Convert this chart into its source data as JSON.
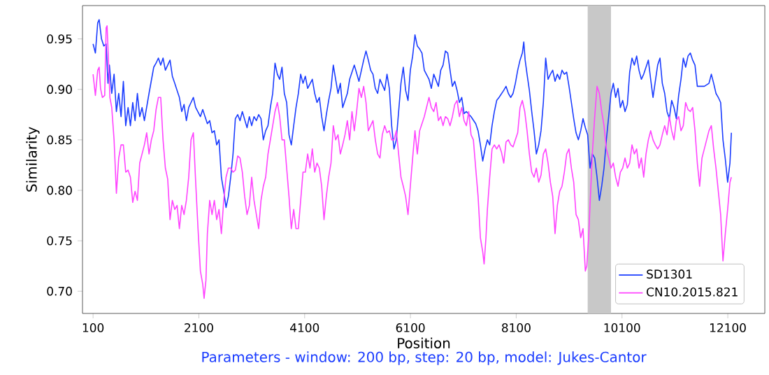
{
  "chart_data": {
    "type": "line",
    "xlabel": "Position",
    "ylabel": "Similarity",
    "annotations": [
      "Parameters - window: 200 bp, step: 20 bp, model: Jukes-Cantor"
    ],
    "xlim": [
      -100,
      12800
    ],
    "ylim": [
      0.678,
      0.983
    ],
    "xticks": [
      100,
      2100,
      4100,
      6100,
      8100,
      10100,
      12100
    ],
    "yticks": [
      {
        "value": 0.7,
        "label": "0.70"
      },
      0.75,
      {
        "value": 0.8,
        "label": "0.80"
      },
      0.85,
      {
        "value": 0.9,
        "label": "0.90"
      },
      0.95
    ],
    "legend": "bottom right",
    "marker": "none",
    "line_style": "solid",
    "bands": [
      {
        "axis": "x",
        "from": 9451,
        "to": 9892,
        "color": "#c8c8c8"
      }
    ],
    "series": [
      {
        "name": "SD1301",
        "color": "#1a3cff",
        "x": [
          100,
          144,
          188,
          215,
          259,
          303,
          347,
          382,
          409,
          453,
          497,
          541,
          585,
          629,
          673,
          717,
          762,
          806,
          850,
          894,
          938,
          982,
          1026,
          1070,
          1158,
          1247,
          1291,
          1335,
          1379,
          1423,
          1467,
          1511,
          1555,
          1599,
          1644,
          1688,
          1732,
          1776,
          1820,
          1864,
          1908,
          1952,
          1996,
          2040,
          2129,
          2173,
          2217,
          2261,
          2305,
          2349,
          2393,
          2437,
          2481,
          2526,
          2570,
          2614,
          2658,
          2702,
          2746,
          2790,
          2834,
          2878,
          2922,
          3011,
          3055,
          3099,
          3143,
          3187,
          3231,
          3275,
          3319,
          3363,
          3407,
          3452,
          3496,
          3540,
          3584,
          3628,
          3672,
          3716,
          3760,
          3804,
          3848,
          3893,
          3937,
          3981,
          4025,
          4069,
          4113,
          4157,
          4245,
          4290,
          4334,
          4378,
          4422,
          4466,
          4510,
          4554,
          4598,
          4642,
          4686,
          4731,
          4775,
          4819,
          4907,
          4951,
          5039,
          5127,
          5216,
          5260,
          5304,
          5348,
          5392,
          5436,
          5480,
          5524,
          5613,
          5657,
          5701,
          5745,
          5789,
          5833,
          5877,
          5921,
          5965,
          6009,
          6054,
          6098,
          6142,
          6186,
          6230,
          6274,
          6318,
          6362,
          6451,
          6495,
          6541,
          6629,
          6673,
          6717,
          6761,
          6805,
          6849,
          6893,
          6938,
          6982,
          7026,
          7070,
          7114,
          7158,
          7246,
          7334,
          7379,
          7423,
          7467,
          7511,
          7555,
          7599,
          7643,
          7687,
          7731,
          7775,
          7864,
          7908,
          7952,
          7996,
          8040,
          8084,
          8128,
          8172,
          8216,
          8243,
          8269,
          8305,
          8349,
          8393,
          8437,
          8481,
          8525,
          8569,
          8613,
          8657,
          8702,
          8746,
          8790,
          8834,
          8878,
          8922,
          8966,
          9010,
          9054,
          9098,
          9143,
          9187,
          9231,
          9275,
          9319,
          9363,
          9407,
          9451,
          9495,
          9539,
          9584,
          9628,
          9672,
          9716,
          9760,
          9804,
          9848,
          9892,
          9936,
          9980,
          10025,
          10069,
          10113,
          10157,
          10201,
          10245,
          10289,
          10333,
          10377,
          10421,
          10466,
          10510,
          10598,
          10642,
          10686,
          10730,
          10774,
          10818,
          10862,
          10907,
          10951,
          10995,
          11039,
          11083,
          11127,
          11171,
          11215,
          11259,
          11303,
          11348,
          11392,
          11436,
          11480,
          11524,
          11656,
          11744,
          11789,
          11833,
          11877,
          11921,
          11965,
          12009,
          12053,
          12097,
          12141,
          12168
        ],
        "values": [
          0.945,
          0.936,
          0.966,
          0.969,
          0.95,
          0.943,
          0.945,
          0.906,
          0.924,
          0.896,
          0.915,
          0.878,
          0.896,
          0.873,
          0.908,
          0.864,
          0.882,
          0.864,
          0.887,
          0.869,
          0.896,
          0.873,
          0.882,
          0.869,
          0.896,
          0.922,
          0.926,
          0.931,
          0.924,
          0.931,
          0.919,
          0.924,
          0.929,
          0.913,
          0.906,
          0.899,
          0.892,
          0.878,
          0.885,
          0.869,
          0.882,
          0.887,
          0.892,
          0.882,
          0.873,
          0.88,
          0.873,
          0.866,
          0.869,
          0.857,
          0.859,
          0.845,
          0.85,
          0.813,
          0.799,
          0.783,
          0.794,
          0.813,
          0.836,
          0.871,
          0.875,
          0.869,
          0.878,
          0.862,
          0.873,
          0.864,
          0.873,
          0.869,
          0.875,
          0.871,
          0.85,
          0.859,
          0.864,
          0.882,
          0.896,
          0.926,
          0.915,
          0.91,
          0.922,
          0.896,
          0.887,
          0.855,
          0.845,
          0.864,
          0.882,
          0.896,
          0.915,
          0.906,
          0.913,
          0.901,
          0.91,
          0.896,
          0.887,
          0.892,
          0.873,
          0.859,
          0.875,
          0.889,
          0.901,
          0.924,
          0.91,
          0.896,
          0.906,
          0.882,
          0.896,
          0.91,
          0.924,
          0.908,
          0.929,
          0.938,
          0.929,
          0.919,
          0.915,
          0.901,
          0.896,
          0.91,
          0.899,
          0.915,
          0.901,
          0.864,
          0.841,
          0.85,
          0.878,
          0.906,
          0.922,
          0.899,
          0.889,
          0.919,
          0.933,
          0.954,
          0.943,
          0.94,
          0.936,
          0.919,
          0.91,
          0.901,
          0.915,
          0.903,
          0.919,
          0.924,
          0.938,
          0.936,
          0.919,
          0.903,
          0.908,
          0.899,
          0.887,
          0.892,
          0.876,
          0.878,
          0.873,
          0.866,
          0.859,
          0.845,
          0.829,
          0.841,
          0.85,
          0.845,
          0.864,
          0.878,
          0.889,
          0.892,
          0.899,
          0.903,
          0.896,
          0.892,
          0.896,
          0.906,
          0.919,
          0.929,
          0.936,
          0.947,
          0.929,
          0.915,
          0.899,
          0.878,
          0.859,
          0.836,
          0.845,
          0.859,
          0.887,
          0.931,
          0.91,
          0.915,
          0.919,
          0.908,
          0.915,
          0.91,
          0.919,
          0.915,
          0.917,
          0.903,
          0.887,
          0.871,
          0.857,
          0.85,
          0.859,
          0.871,
          0.862,
          0.855,
          0.822,
          0.836,
          0.832,
          0.813,
          0.79,
          0.804,
          0.822,
          0.85,
          0.873,
          0.896,
          0.906,
          0.892,
          0.901,
          0.882,
          0.889,
          0.878,
          0.885,
          0.917,
          0.931,
          0.924,
          0.933,
          0.919,
          0.91,
          0.915,
          0.929,
          0.91,
          0.892,
          0.908,
          0.924,
          0.931,
          0.906,
          0.896,
          0.878,
          0.871,
          0.889,
          0.882,
          0.871,
          0.894,
          0.91,
          0.931,
          0.922,
          0.933,
          0.936,
          0.929,
          0.924,
          0.903,
          0.903,
          0.906,
          0.915,
          0.906,
          0.896,
          0.892,
          0.887,
          0.85,
          0.831,
          0.808,
          0.827,
          0.857
        ]
      },
      {
        "name": "CN10.2015.821",
        "color": "#ff44ff",
        "x": [
          100,
          144,
          188,
          215,
          241,
          276,
          320,
          347,
          365,
          391,
          418,
          453,
          497,
          541,
          585,
          629,
          673,
          717,
          762,
          806,
          850,
          894,
          938,
          982,
          1026,
          1070,
          1114,
          1158,
          1202,
          1247,
          1291,
          1335,
          1379,
          1423,
          1467,
          1511,
          1555,
          1599,
          1644,
          1688,
          1732,
          1776,
          1820,
          1864,
          1908,
          1952,
          1996,
          2040,
          2084,
          2129,
          2173,
          2199,
          2234,
          2261,
          2305,
          2349,
          2393,
          2437,
          2481,
          2526,
          2570,
          2614,
          2658,
          2702,
          2746,
          2790,
          2834,
          2878,
          2922,
          2966,
          3011,
          3055,
          3099,
          3143,
          3187,
          3231,
          3275,
          3319,
          3363,
          3407,
          3452,
          3496,
          3540,
          3584,
          3628,
          3672,
          3716,
          3760,
          3804,
          3848,
          3893,
          3937,
          3981,
          4025,
          4069,
          4113,
          4157,
          4201,
          4245,
          4290,
          4334,
          4378,
          4422,
          4466,
          4510,
          4554,
          4598,
          4642,
          4686,
          4731,
          4775,
          4819,
          4863,
          4907,
          4951,
          4995,
          5039,
          5083,
          5127,
          5172,
          5216,
          5260,
          5304,
          5348,
          5392,
          5436,
          5480,
          5524,
          5568,
          5613,
          5657,
          5701,
          5745,
          5789,
          5833,
          5877,
          5921,
          5965,
          6009,
          6054,
          6098,
          6142,
          6186,
          6230,
          6274,
          6362,
          6451,
          6495,
          6541,
          6585,
          6629,
          6673,
          6717,
          6761,
          6805,
          6849,
          6893,
          6938,
          6982,
          7026,
          7070,
          7114,
          7158,
          7202,
          7246,
          7290,
          7334,
          7379,
          7423,
          7467,
          7493,
          7528,
          7555,
          7599,
          7643,
          7687,
          7731,
          7775,
          7820,
          7864,
          7908,
          7952,
          7996,
          8040,
          8084,
          8128,
          8172,
          8216,
          8261,
          8305,
          8349,
          8393,
          8437,
          8481,
          8525,
          8569,
          8613,
          8657,
          8702,
          8746,
          8790,
          8834,
          8878,
          8922,
          8966,
          9010,
          9054,
          9098,
          9143,
          9187,
          9231,
          9275,
          9319,
          9363,
          9407,
          9434,
          9469,
          9495,
          9539,
          9584,
          9628,
          9672,
          9716,
          9760,
          9804,
          9848,
          9892,
          9936,
          9980,
          10025,
          10069,
          10113,
          10157,
          10201,
          10245,
          10289,
          10333,
          10377,
          10421,
          10466,
          10510,
          10554,
          10598,
          10642,
          10686,
          10730,
          10774,
          10818,
          10862,
          10907,
          10951,
          10995,
          11039,
          11083,
          11127,
          11171,
          11215,
          11259,
          11303,
          11348,
          11392,
          11436,
          11480,
          11524,
          11568,
          11612,
          11656,
          11700,
          11744,
          11789,
          11833,
          11877,
          11921,
          11965,
          12009,
          12053,
          12097,
          12141,
          12168
        ],
        "values": [
          0.915,
          0.894,
          0.919,
          0.922,
          0.901,
          0.892,
          0.894,
          0.961,
          0.963,
          0.929,
          0.892,
          0.882,
          0.85,
          0.797,
          0.832,
          0.845,
          0.845,
          0.818,
          0.82,
          0.813,
          0.788,
          0.799,
          0.79,
          0.827,
          0.836,
          0.845,
          0.857,
          0.836,
          0.85,
          0.859,
          0.88,
          0.892,
          0.892,
          0.85,
          0.822,
          0.811,
          0.771,
          0.79,
          0.781,
          0.785,
          0.762,
          0.785,
          0.776,
          0.79,
          0.813,
          0.85,
          0.857,
          0.808,
          0.762,
          0.72,
          0.707,
          0.693,
          0.711,
          0.757,
          0.79,
          0.776,
          0.79,
          0.771,
          0.781,
          0.757,
          0.79,
          0.813,
          0.822,
          0.822,
          0.818,
          0.82,
          0.834,
          0.832,
          0.818,
          0.794,
          0.776,
          0.785,
          0.813,
          0.79,
          0.776,
          0.762,
          0.79,
          0.804,
          0.813,
          0.836,
          0.85,
          0.864,
          0.878,
          0.887,
          0.873,
          0.85,
          0.85,
          0.822,
          0.794,
          0.762,
          0.781,
          0.762,
          0.762,
          0.79,
          0.818,
          0.818,
          0.836,
          0.822,
          0.841,
          0.818,
          0.827,
          0.822,
          0.804,
          0.771,
          0.794,
          0.813,
          0.827,
          0.864,
          0.85,
          0.855,
          0.836,
          0.845,
          0.855,
          0.869,
          0.85,
          0.878,
          0.859,
          0.878,
          0.901,
          0.892,
          0.903,
          0.887,
          0.859,
          0.864,
          0.869,
          0.85,
          0.836,
          0.832,
          0.855,
          0.864,
          0.857,
          0.859,
          0.85,
          0.85,
          0.859,
          0.836,
          0.813,
          0.804,
          0.794,
          0.776,
          0.804,
          0.832,
          0.859,
          0.836,
          0.859,
          0.873,
          0.892,
          0.882,
          0.878,
          0.887,
          0.869,
          0.873,
          0.864,
          0.873,
          0.871,
          0.864,
          0.873,
          0.885,
          0.889,
          0.873,
          0.882,
          0.869,
          0.864,
          0.878,
          0.855,
          0.85,
          0.822,
          0.794,
          0.753,
          0.739,
          0.727,
          0.753,
          0.781,
          0.813,
          0.841,
          0.845,
          0.841,
          0.845,
          0.838,
          0.827,
          0.848,
          0.85,
          0.845,
          0.843,
          0.85,
          0.857,
          0.882,
          0.889,
          0.878,
          0.859,
          0.836,
          0.818,
          0.813,
          0.822,
          0.808,
          0.815,
          0.836,
          0.841,
          0.827,
          0.808,
          0.794,
          0.757,
          0.785,
          0.799,
          0.804,
          0.818,
          0.836,
          0.841,
          0.822,
          0.808,
          0.776,
          0.771,
          0.753,
          0.762,
          0.72,
          0.725,
          0.753,
          0.785,
          0.836,
          0.873,
          0.903,
          0.896,
          0.878,
          0.864,
          0.841,
          0.832,
          0.822,
          0.827,
          0.813,
          0.804,
          0.818,
          0.822,
          0.832,
          0.822,
          0.827,
          0.845,
          0.836,
          0.841,
          0.822,
          0.832,
          0.813,
          0.836,
          0.85,
          0.859,
          0.85,
          0.845,
          0.841,
          0.845,
          0.855,
          0.864,
          0.855,
          0.873,
          0.859,
          0.85,
          0.869,
          0.873,
          0.859,
          0.864,
          0.887,
          0.88,
          0.878,
          0.882,
          0.859,
          0.827,
          0.804,
          0.832,
          0.841,
          0.85,
          0.859,
          0.864,
          0.841,
          0.822,
          0.799,
          0.776,
          0.73,
          0.757,
          0.781,
          0.808,
          0.813
        ]
      }
    ]
  }
}
